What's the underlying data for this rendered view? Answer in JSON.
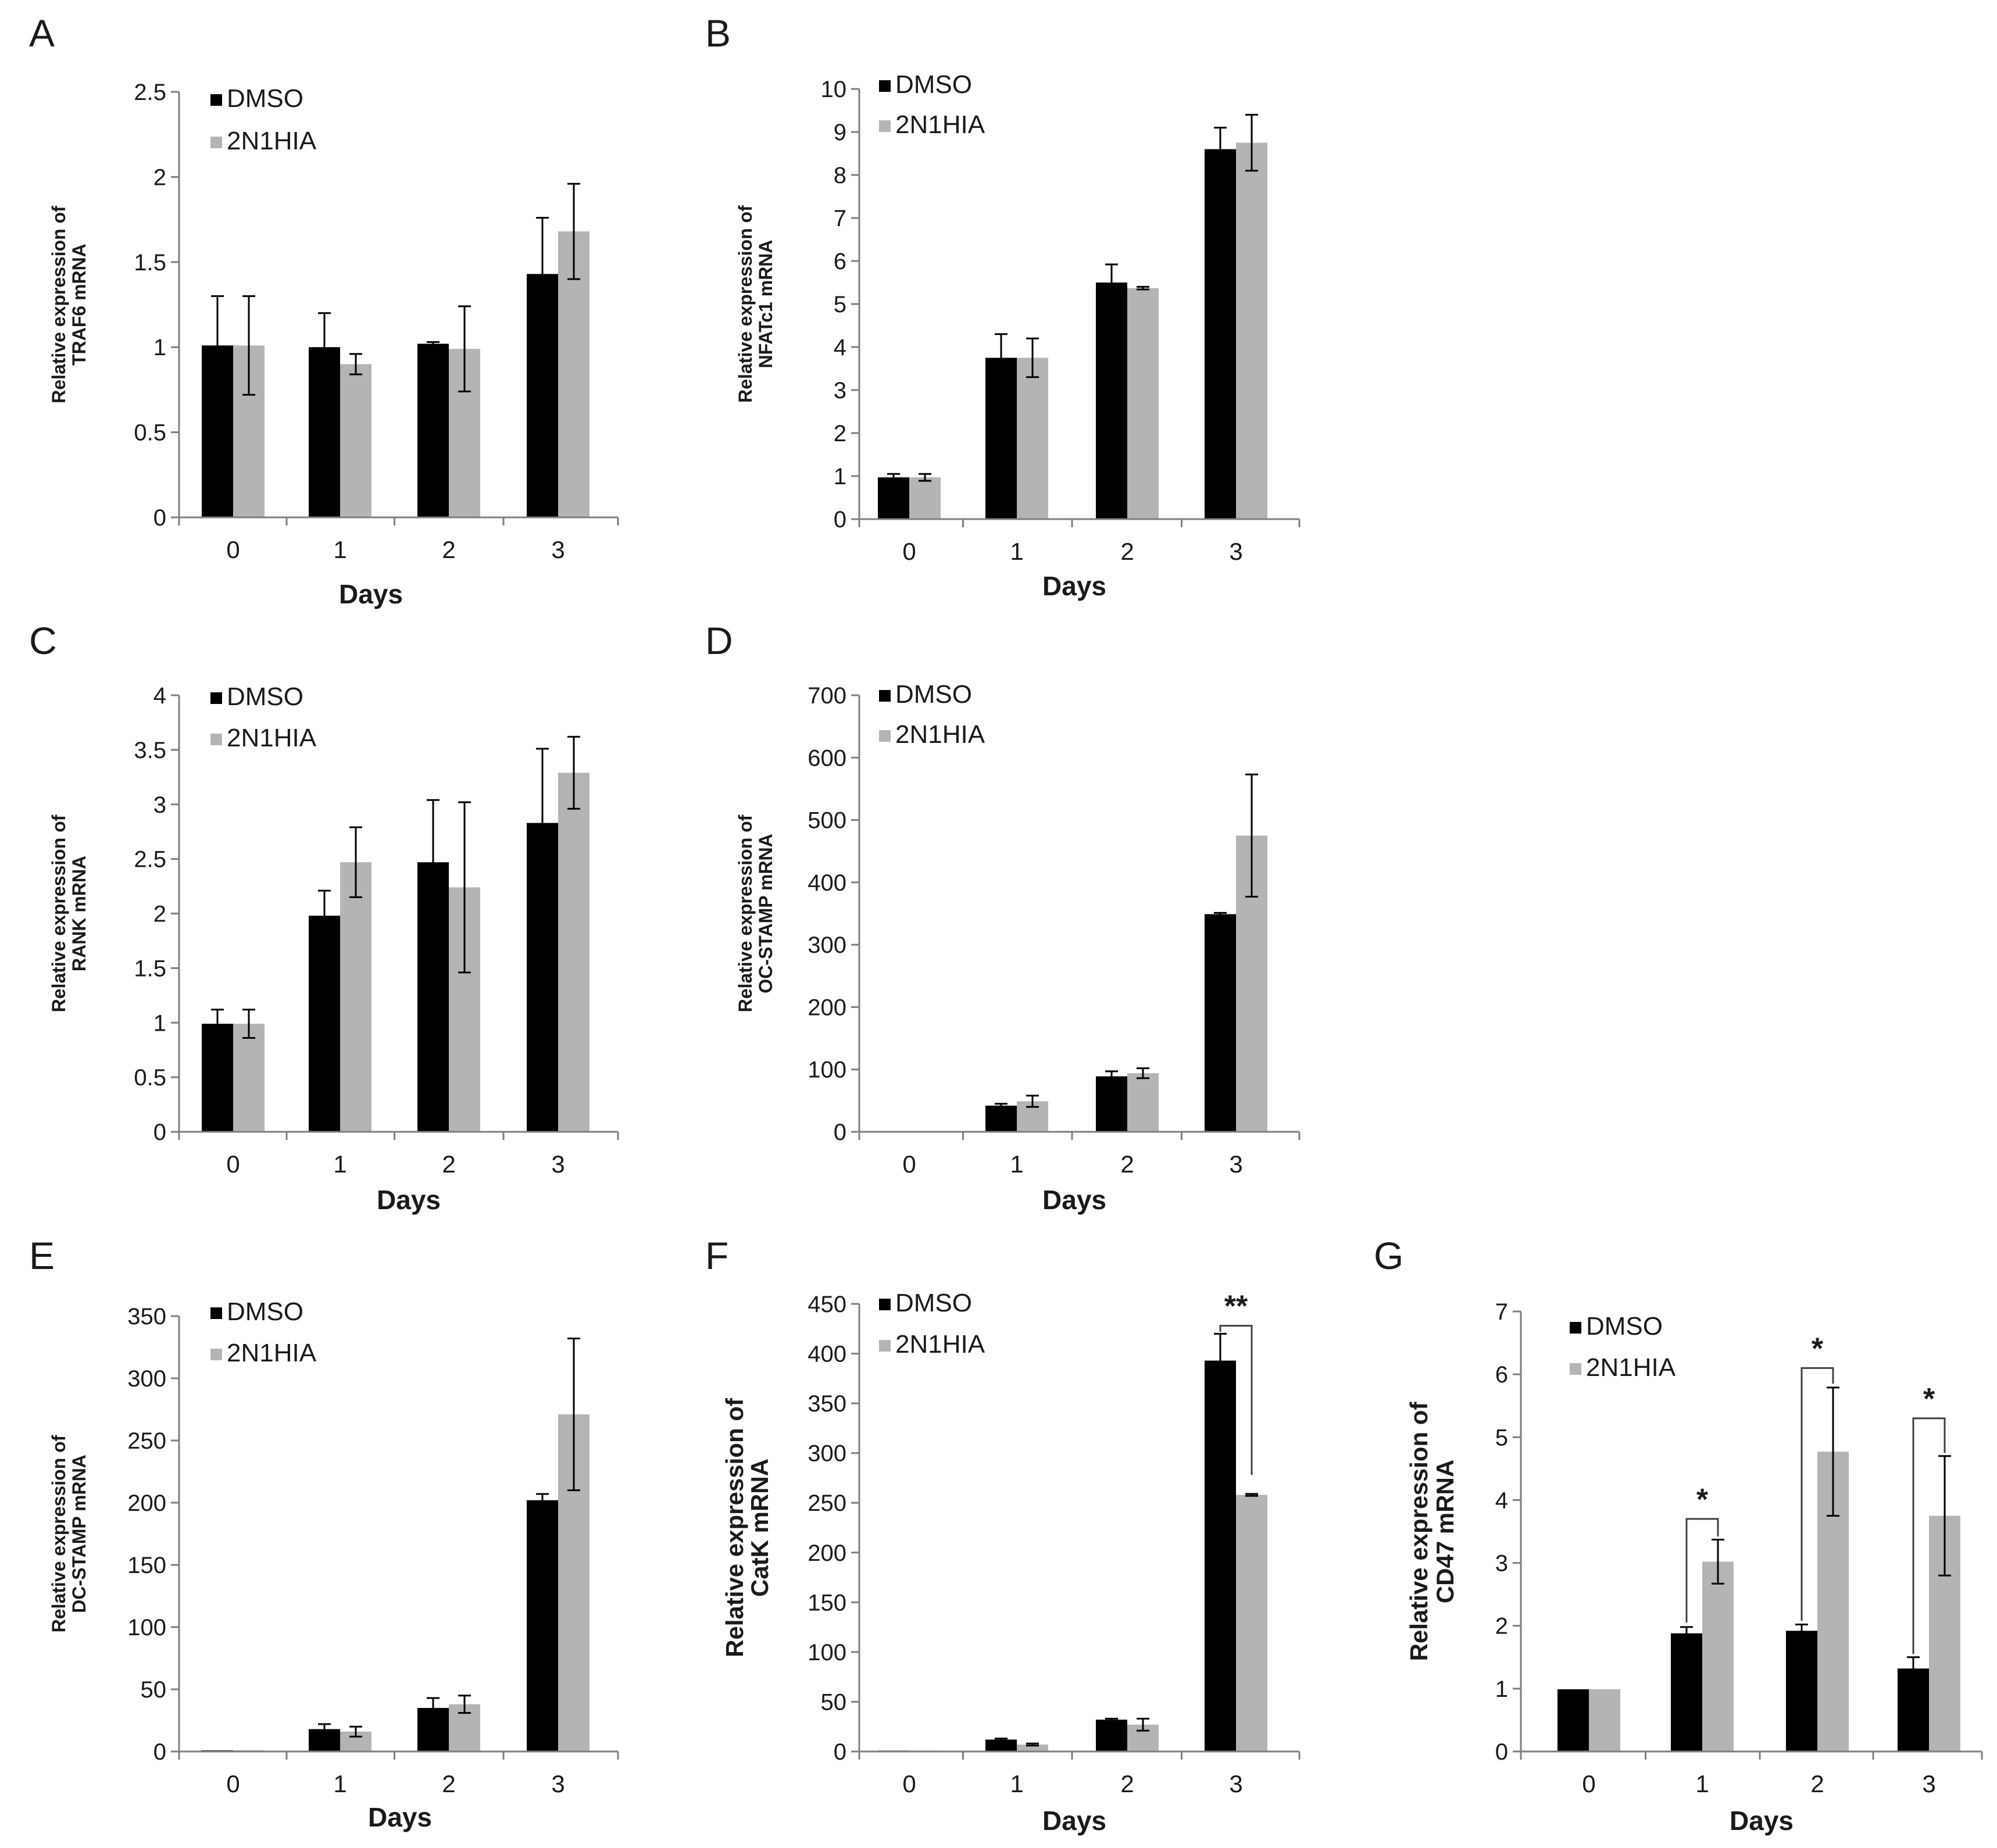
{
  "figure": {
    "shared": {
      "categories": [
        "0",
        "1",
        "2",
        "3"
      ],
      "xlabel": "Days",
      "series_names": [
        "DMSO",
        "2N1HIA"
      ],
      "colors": {
        "DMSO": "#000000",
        "2N1HIA": "#b4b4b4",
        "axis": "#7f7f7f",
        "text": "#1a1a1a"
      }
    }
  },
  "chart_data": [
    {
      "panel": "A",
      "type": "bar",
      "title": "",
      "xlabel": "Days",
      "ylabel": [
        "Relative expression of",
        "TRAF6 mRNA"
      ],
      "categories": [
        "0",
        "1",
        "2",
        "3"
      ],
      "ylim": [
        0,
        2.5
      ],
      "yticks": [
        "0",
        "0.5",
        "1",
        "1.5",
        "2",
        "2.5"
      ],
      "series": [
        {
          "name": "DMSO",
          "values": [
            1.01,
            1.0,
            1.02,
            1.43
          ],
          "errors": [
            0.29,
            0.2,
            0.01,
            0.33
          ]
        },
        {
          "name": "2N1HIA",
          "values": [
            1.01,
            0.9,
            0.99,
            1.68
          ],
          "errors": [
            0.29,
            0.06,
            0.25,
            0.28
          ]
        }
      ],
      "annotations": []
    },
    {
      "panel": "B",
      "type": "bar",
      "title": "",
      "xlabel": "Days",
      "ylabel": [
        "Relative expression of",
        "NFATc1 mRNA"
      ],
      "categories": [
        "0",
        "1",
        "2",
        "3"
      ],
      "ylim": [
        0,
        10
      ],
      "yticks": [
        "0",
        "1",
        "2",
        "3",
        "4",
        "5",
        "6",
        "7",
        "8",
        "9",
        "10"
      ],
      "series": [
        {
          "name": "DMSO",
          "values": [
            0.97,
            3.75,
            5.5,
            8.6
          ],
          "errors": [
            0.08,
            0.55,
            0.42,
            0.5
          ]
        },
        {
          "name": "2N1HIA",
          "values": [
            0.97,
            3.75,
            5.37,
            8.75
          ],
          "errors": [
            0.08,
            0.45,
            0.03,
            0.65
          ]
        }
      ],
      "annotations": []
    },
    {
      "panel": "C",
      "type": "bar",
      "title": "",
      "xlabel": "Days",
      "ylabel": [
        "Relative expression of",
        "RANK mRNA"
      ],
      "categories": [
        "0",
        "1",
        "2",
        "3"
      ],
      "ylim": [
        0,
        4
      ],
      "yticks": [
        "0",
        "0.5",
        "1",
        "1.5",
        "2",
        "2.5",
        "3",
        "3.5",
        "4"
      ],
      "series": [
        {
          "name": "DMSO",
          "values": [
            0.99,
            1.98,
            2.47,
            2.83
          ],
          "errors": [
            0.13,
            0.23,
            0.57,
            0.68
          ]
        },
        {
          "name": "2N1HIA",
          "values": [
            0.99,
            2.47,
            2.24,
            3.29
          ],
          "errors": [
            0.13,
            0.32,
            0.78,
            0.33
          ]
        }
      ],
      "annotations": []
    },
    {
      "panel": "D",
      "type": "bar",
      "title": "",
      "xlabel": "Days",
      "ylabel": [
        "Relative expression of",
        "OC-STAMP mRNA"
      ],
      "categories": [
        "0",
        "1",
        "2",
        "3"
      ],
      "ylim": [
        0,
        700
      ],
      "yticks": [
        "0",
        "100",
        "200",
        "300",
        "400",
        "500",
        "600",
        "700"
      ],
      "series": [
        {
          "name": "DMSO",
          "values": [
            1,
            42,
            89,
            349
          ],
          "errors": [
            0,
            3,
            8,
            2
          ]
        },
        {
          "name": "2N1HIA",
          "values": [
            1,
            49,
            94,
            475
          ],
          "errors": [
            0,
            9,
            8,
            98
          ]
        }
      ],
      "annotations": []
    },
    {
      "panel": "E",
      "type": "bar",
      "title": "",
      "xlabel": "Days",
      "ylabel": [
        "Relative expression of",
        "DC-STAMP mRNA"
      ],
      "categories": [
        "0",
        "1",
        "2",
        "3"
      ],
      "ylim": [
        0,
        350
      ],
      "yticks": [
        "0",
        "50",
        "100",
        "150",
        "200",
        "250",
        "300",
        "350"
      ],
      "series": [
        {
          "name": "DMSO",
          "values": [
            1,
            18,
            35,
            202
          ],
          "errors": [
            0,
            4,
            8,
            5
          ]
        },
        {
          "name": "2N1HIA",
          "values": [
            1,
            16,
            38,
            271
          ],
          "errors": [
            0,
            4,
            7,
            61
          ]
        }
      ],
      "annotations": []
    },
    {
      "panel": "F",
      "type": "bar",
      "title": "",
      "xlabel": "Days",
      "ylabel": [
        "Relative expression of",
        "CatK mRNA"
      ],
      "categories": [
        "0",
        "1",
        "2",
        "3"
      ],
      "ylim": [
        0,
        450
      ],
      "yticks": [
        "0",
        "50",
        "100",
        "150",
        "200",
        "250",
        "300",
        "350",
        "400",
        "450"
      ],
      "series": [
        {
          "name": "DMSO",
          "values": [
            1,
            12,
            32,
            393
          ],
          "errors": [
            0,
            1,
            1,
            27
          ]
        },
        {
          "name": "2N1HIA",
          "values": [
            1,
            7,
            27,
            258
          ],
          "errors": [
            0,
            1,
            6,
            1
          ]
        }
      ],
      "annotations": [
        {
          "category": 3,
          "label": "**",
          "level": 428,
          "drop_dmso": 422,
          "drop_treat": 278
        }
      ]
    },
    {
      "panel": "G",
      "type": "bar",
      "title": "",
      "xlabel": "Days",
      "ylabel": [
        "Relative expression of",
        "CD47 mRNA"
      ],
      "categories": [
        "0",
        "1",
        "2",
        "3"
      ],
      "ylim": [
        0,
        7
      ],
      "yticks": [
        "0",
        "1",
        "2",
        "3",
        "4",
        "5",
        "6",
        "7"
      ],
      "series": [
        {
          "name": "DMSO",
          "values": [
            0.99,
            1.88,
            1.92,
            1.32
          ],
          "errors": [
            0,
            0.1,
            0.1,
            0.18
          ]
        },
        {
          "name": "2N1HIA",
          "values": [
            0.99,
            3.02,
            4.77,
            3.75
          ],
          "errors": [
            0,
            0.35,
            1.02,
            0.95
          ]
        }
      ],
      "annotations": [
        {
          "category": 1,
          "label": "*",
          "level": 3.7,
          "drop_dmso": 2.05,
          "drop_treat": 3.42
        },
        {
          "category": 2,
          "label": "*",
          "level": 6.1,
          "drop_dmso": 2.08,
          "drop_treat": 5.85
        },
        {
          "category": 3,
          "label": "*",
          "level": 5.3,
          "drop_dmso": 1.55,
          "drop_treat": 4.75
        }
      ]
    }
  ]
}
